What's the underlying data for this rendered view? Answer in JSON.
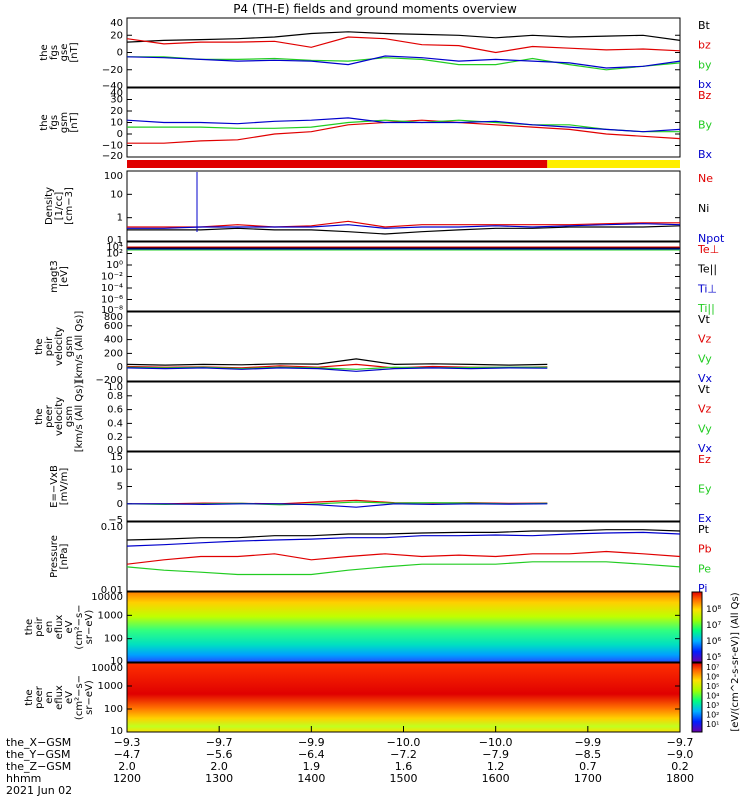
{
  "title": "P4 (TH-E) fields and ground moments overview",
  "colors": {
    "black": "#000000",
    "red": "#e00000",
    "green": "#22cc22",
    "blue": "#0000cc",
    "yellow": "#ffee00",
    "spec_red": "#e00000"
  },
  "panels": [
    {
      "ylabel": [
        "the",
        "fgs",
        "gse",
        "[nT]"
      ],
      "yticks": [
        "40",
        "20",
        "0",
        "−20",
        "−40"
      ],
      "ylim": [
        -40,
        40
      ],
      "legend": [
        {
          "text": "Bt",
          "color": "black"
        },
        {
          "text": "bz",
          "color": "red"
        },
        {
          "text": "by",
          "color": "green"
        },
        {
          "text": "bx",
          "color": "blue"
        }
      ]
    },
    {
      "ylabel": [
        "the",
        "fgs",
        "gsm",
        "[nT]"
      ],
      "yticks": [
        "40",
        "30",
        "20",
        "10",
        "0",
        "−10",
        "−20"
      ],
      "ylim": [
        -20,
        40
      ],
      "legend": [
        {
          "text": "Bz",
          "color": "red"
        },
        {
          "text": "By",
          "color": "green"
        },
        {
          "text": "Bx",
          "color": "blue"
        }
      ]
    },
    {
      "ylabel": [
        "Density",
        "[1/cc]",
        "[cm−3]"
      ],
      "yticks": [
        "100",
        "10",
        "1",
        "0.1"
      ],
      "ylim": [
        0.1,
        100
      ],
      "log": true,
      "legend": [
        {
          "text": "Ne",
          "color": "red"
        },
        {
          "text": "Ni",
          "color": "black"
        },
        {
          "text": "Npot",
          "color": "blue"
        }
      ]
    },
    {
      "ylabel": [
        "magt3",
        "[eV]"
      ],
      "yticks": [
        "10⁴",
        "10²",
        "10⁰",
        "10⁻²",
        "10⁻⁴",
        "10⁻⁶",
        "10⁻⁸"
      ],
      "legend": [
        {
          "text": "Te⊥",
          "color": "red"
        },
        {
          "text": "Te||",
          "color": "black"
        },
        {
          "text": "Ti⊥",
          "color": "blue"
        },
        {
          "text": "Ti||",
          "color": "green"
        }
      ]
    },
    {
      "ylabel": [
        "the",
        "peir",
        "velocity",
        "gsm",
        "[km/s (All Qs)]"
      ],
      "yticks": [
        "800",
        "600",
        "400",
        "200",
        "0",
        "−200"
      ],
      "ylim": [
        -200,
        800
      ],
      "legend": [
        {
          "text": "Vt",
          "color": "black"
        },
        {
          "text": "Vz",
          "color": "red"
        },
        {
          "text": "Vy",
          "color": "green"
        },
        {
          "text": "Vx",
          "color": "blue"
        }
      ]
    },
    {
      "ylabel": [
        "the",
        "peer",
        "velocity",
        "gsm",
        "[km/s (All Qs)]"
      ],
      "yticks": [
        "1.0",
        "0.8",
        "0.6",
        "0.4",
        "0.2",
        "0.0"
      ],
      "legend": [
        {
          "text": "Vt",
          "color": "black"
        },
        {
          "text": "Vz",
          "color": "red"
        },
        {
          "text": "Vy",
          "color": "green"
        },
        {
          "text": "Vx",
          "color": "blue"
        }
      ]
    },
    {
      "ylabel": [
        "E=−VxB",
        "[mV/m]"
      ],
      "yticks": [
        "15",
        "10",
        "5",
        "0",
        "−5"
      ],
      "ylim": [
        -5,
        15
      ],
      "legend": [
        {
          "text": "Ez",
          "color": "red"
        },
        {
          "text": "Ey",
          "color": "green"
        },
        {
          "text": "Ex",
          "color": "blue"
        }
      ]
    },
    {
      "ylabel": [
        "Pressure",
        "[nPa]"
      ],
      "yticks": [
        "0.10",
        "0.01"
      ],
      "log": true,
      "legend": [
        {
          "text": "Pt",
          "color": "black"
        },
        {
          "text": "Pb",
          "color": "red"
        },
        {
          "text": "Pe",
          "color": "green"
        },
        {
          "text": "Pi",
          "color": "blue"
        }
      ]
    },
    {
      "ylabel": [
        "the",
        "peir",
        "en",
        "eflux",
        "eV",
        "(cm²−s−",
        "sr−eV)"
      ],
      "yticks": [
        "10000",
        "1000",
        "100",
        "10"
      ]
    },
    {
      "ylabel": [
        "the",
        "peer",
        "en",
        "eflux",
        "eV",
        "(cm²−s−",
        "sr−eV)"
      ],
      "yticks": [
        "10000",
        "1000",
        "100",
        "10"
      ]
    }
  ],
  "colorbar": {
    "label": "[eV/(cm^2-s-sr-eV)] (All Qs)",
    "ticks1": [
      "10⁸",
      "10⁷",
      "10⁶",
      "10⁵"
    ],
    "ticks2": [
      "10⁷",
      "10⁶",
      "10⁵",
      "10⁴",
      "10³",
      "10²",
      "10¹"
    ]
  },
  "xaxis": {
    "row_labels": [
      "the_X−GSM",
      "the_Y−GSM",
      "the_Z−GSM",
      "hhmm",
      "2021 Jun 02"
    ],
    "ticks": [
      {
        "x": "−9.3",
        "y": "−4.7",
        "z": "2.0",
        "hhmm": "1200"
      },
      {
        "x": "−9.7",
        "y": "−5.6",
        "z": "2.0",
        "hhmm": "1300"
      },
      {
        "x": "−9.9",
        "y": "−6.4",
        "z": "1.9",
        "hhmm": "1400"
      },
      {
        "x": "−10.0",
        "y": "−7.2",
        "z": "1.6",
        "hhmm": "1500"
      },
      {
        "x": "−10.0",
        "y": "−7.9",
        "z": "1.2",
        "hhmm": "1600"
      },
      {
        "x": "−9.9",
        "y": "−8.5",
        "z": "0.7",
        "hhmm": "1700"
      },
      {
        "x": "−9.7",
        "y": "−9.0",
        "z": "0.2",
        "hhmm": "1800"
      }
    ]
  },
  "chart_data": {
    "type": "line",
    "x_range": [
      "1200",
      "1800"
    ],
    "mode_bar": {
      "red_until": "1648",
      "yellow_from": "1648"
    },
    "series": [
      {
        "panel": 0,
        "name": "Bt",
        "values": [
          12,
          14,
          15,
          16,
          18,
          22,
          24,
          22,
          21,
          20,
          17,
          20,
          18,
          19,
          20,
          14
        ]
      },
      {
        "panel": 0,
        "name": "bz",
        "values": [
          16,
          10,
          12,
          12,
          13,
          6,
          18,
          16,
          9,
          8,
          0,
          7,
          5,
          3,
          4,
          2
        ]
      },
      {
        "panel": 0,
        "name": "by",
        "values": [
          -5,
          -5,
          -8,
          -8,
          -7,
          -9,
          -10,
          -6,
          -8,
          -14,
          -14,
          -7,
          -14,
          -20,
          -16,
          -12
        ]
      },
      {
        "panel": 0,
        "name": "bx",
        "values": [
          -5,
          -6,
          -8,
          -10,
          -9,
          -10,
          -14,
          -4,
          -6,
          -10,
          -8,
          -10,
          -12,
          -18,
          -16,
          -10
        ]
      },
      {
        "panel": 1,
        "name": "Bz",
        "values": [
          -8,
          -8,
          -6,
          -5,
          0,
          2,
          8,
          10,
          12,
          10,
          8,
          6,
          4,
          0,
          -2,
          -4
        ]
      },
      {
        "panel": 1,
        "name": "By",
        "values": [
          6,
          6,
          6,
          5,
          5,
          6,
          10,
          12,
          10,
          12,
          10,
          8,
          8,
          4,
          2,
          2
        ]
      },
      {
        "panel": 1,
        "name": "Bx",
        "values": [
          12,
          10,
          10,
          9,
          11,
          12,
          14,
          10,
          10,
          10,
          11,
          8,
          6,
          4,
          2,
          4
        ]
      },
      {
        "panel": 2,
        "name": "Ne",
        "values": [
          0.4,
          0.4,
          0.4,
          0.5,
          0.4,
          0.45,
          0.7,
          0.4,
          0.5,
          0.5,
          0.5,
          0.5,
          0.5,
          0.55,
          0.6,
          0.6
        ]
      },
      {
        "panel": 2,
        "name": "Ni",
        "values": [
          0.3,
          0.3,
          0.3,
          0.35,
          0.3,
          0.3,
          0.25,
          0.2,
          0.25,
          0.3,
          0.35,
          0.35,
          0.4,
          0.4,
          0.4,
          0.45
        ]
      },
      {
        "panel": 2,
        "name": "Npot",
        "values": [
          0.35,
          0.35,
          0.4,
          0.4,
          0.4,
          0.4,
          0.5,
          0.35,
          0.4,
          0.4,
          0.45,
          0.4,
          0.45,
          0.5,
          0.55,
          0.5
        ]
      },
      {
        "panel": 4,
        "name": "Vt",
        "values": [
          40,
          30,
          40,
          35,
          50,
          45,
          120,
          40,
          50,
          40,
          30,
          40
        ]
      },
      {
        "panel": 4,
        "name": "Vz",
        "values": [
          10,
          0,
          5,
          -10,
          20,
          0,
          40,
          -10,
          10,
          0,
          -5,
          5
        ]
      },
      {
        "panel": 4,
        "name": "Vy",
        "values": [
          0,
          -10,
          0,
          -20,
          0,
          -10,
          -30,
          0,
          -10,
          -5,
          0,
          0
        ]
      },
      {
        "panel": 4,
        "name": "Vx",
        "values": [
          -10,
          -20,
          -10,
          -30,
          -10,
          -20,
          -60,
          -20,
          -10,
          -20,
          -10,
          -15
        ]
      },
      {
        "panel": 6,
        "name": "Ez",
        "values": [
          0,
          0,
          0.2,
          0.1,
          0,
          0.5,
          1,
          0.3,
          0.2,
          0.3,
          0.1,
          0.2
        ]
      },
      {
        "panel": 6,
        "name": "Ey",
        "values": [
          0,
          -0.2,
          0,
          0.1,
          -0.3,
          0,
          0.5,
          0.2,
          0.3,
          0.2,
          0,
          0.1
        ]
      },
      {
        "panel": 6,
        "name": "Ex",
        "values": [
          0,
          0,
          -0.2,
          0,
          0,
          -0.3,
          -1,
          0,
          -0.2,
          0,
          -0.1,
          0
        ]
      },
      {
        "panel": 7,
        "name": "Pt",
        "values": [
          0.3,
          0.32,
          0.35,
          0.35,
          0.4,
          0.4,
          0.45,
          0.45,
          0.48,
          0.5,
          0.5,
          0.55,
          0.55,
          0.6,
          0.6,
          0.55
        ]
      },
      {
        "panel": 7,
        "name": "Pb",
        "values": [
          0.06,
          0.08,
          0.1,
          0.1,
          0.12,
          0.08,
          0.1,
          0.12,
          0.1,
          0.11,
          0.1,
          0.12,
          0.12,
          0.14,
          0.12,
          0.1
        ]
      },
      {
        "panel": 7,
        "name": "Pe",
        "values": [
          0.05,
          0.04,
          0.035,
          0.03,
          0.03,
          0.03,
          0.04,
          0.05,
          0.06,
          0.06,
          0.06,
          0.07,
          0.07,
          0.07,
          0.06,
          0.05
        ]
      },
      {
        "panel": 7,
        "name": "Pi",
        "values": [
          0.2,
          0.22,
          0.25,
          0.28,
          0.3,
          0.32,
          0.35,
          0.35,
          0.4,
          0.4,
          0.42,
          0.4,
          0.45,
          0.48,
          0.5,
          0.45
        ]
      }
    ]
  }
}
